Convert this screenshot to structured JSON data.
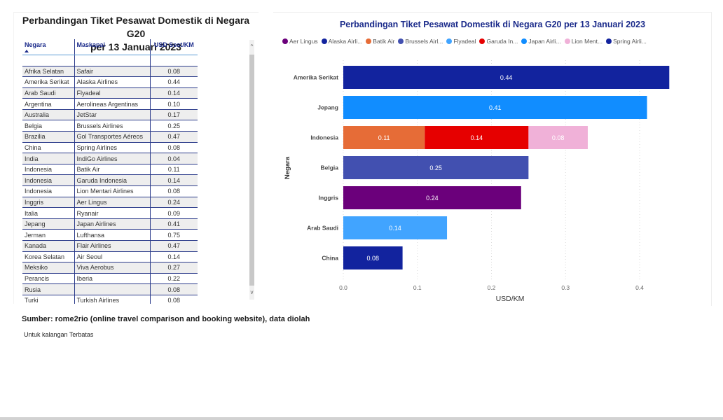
{
  "table_panel": {
    "title_line1": "Perbandingan Tiket Pesawat Domestik di Negara G20",
    "title_line2": "per 13 Januari 2023",
    "columns": [
      "Negara",
      "Maskapai",
      "USD Seat/KM"
    ],
    "sort_column": "Negara",
    "sort_direction": "ascending",
    "rows": [
      {
        "negara": "Afrika Selatan",
        "maskapai": "Safair",
        "usd": "0.08"
      },
      {
        "negara": "Amerika Serikat",
        "maskapai": "Alaska Airlines",
        "usd": "0.44"
      },
      {
        "negara": "Arab Saudi",
        "maskapai": "Flyadeal",
        "usd": "0.14"
      },
      {
        "negara": "Argentina",
        "maskapai": "Aerolineas Argentinas",
        "usd": "0.10"
      },
      {
        "negara": "Australia",
        "maskapai": "JetStar",
        "usd": "0.17"
      },
      {
        "negara": "Belgia",
        "maskapai": "Brussels Airlines",
        "usd": "0.25"
      },
      {
        "negara": "Brazilia",
        "maskapai": "Gol Transportes Aéreos",
        "usd": "0.47"
      },
      {
        "negara": "China",
        "maskapai": "Spring Airlines",
        "usd": "0.08"
      },
      {
        "negara": "India",
        "maskapai": "IndiGo Airlines",
        "usd": "0.04"
      },
      {
        "negara": "Indonesia",
        "maskapai": "Batik Air",
        "usd": "0.11"
      },
      {
        "negara": "Indonesia",
        "maskapai": "Garuda Indonesia",
        "usd": "0.14"
      },
      {
        "negara": "Indonesia",
        "maskapai": "Lion Mentari Airlines",
        "usd": "0.08"
      },
      {
        "negara": "Inggris",
        "maskapai": "Aer Lingus",
        "usd": "0.24"
      },
      {
        "negara": "Italia",
        "maskapai": "Ryanair",
        "usd": "0.09"
      },
      {
        "negara": "Jepang",
        "maskapai": "Japan Airlines",
        "usd": "0.41"
      },
      {
        "negara": "Jerman",
        "maskapai": "Lufthansa",
        "usd": "0.75"
      },
      {
        "negara": "Kanada",
        "maskapai": "Flair Airlines",
        "usd": "0.47"
      },
      {
        "negara": "Korea Selatan",
        "maskapai": "Air Seoul",
        "usd": "0.14"
      },
      {
        "negara": "Meksiko",
        "maskapai": "Viva Aerobus",
        "usd": "0.27"
      },
      {
        "negara": "Perancis",
        "maskapai": "Iberia",
        "usd": "0.22"
      },
      {
        "negara": "Rusia",
        "maskapai": "",
        "usd": "0.08"
      },
      {
        "negara": "Turki",
        "maskapai": "Turkish Airlines",
        "usd": "0.08"
      }
    ],
    "scroll_up_glyph": "^",
    "scroll_down_glyph": "v"
  },
  "footer": {
    "source": "Sumber: rome2rio (online travel comparison and booking website), data diolah",
    "note": "Untuk kalangan Terbatas"
  },
  "chart_data": {
    "type": "bar",
    "orientation": "horizontal",
    "stacked": true,
    "title": "Perbandingan Tiket Pesawat Domestik di Negara G20 per 13 Januari 2023",
    "xlabel": "USD/KM",
    "ylabel": "Negara",
    "xlim": [
      0,
      0.44
    ],
    "xticks": [
      "0.0",
      "0.1",
      "0.2",
      "0.3",
      "0.4"
    ],
    "xtick_values": [
      0,
      0.1,
      0.2,
      0.3,
      0.4
    ],
    "grid": "vertical dotted",
    "legend_position": "top-left",
    "legend": [
      {
        "label": "Aer Lingus",
        "color": "#6b007b"
      },
      {
        "label": "Alaska Airli...",
        "color": "#12239e"
      },
      {
        "label": "Batik Air",
        "color": "#e66c37"
      },
      {
        "label": "Brussels Airl...",
        "color": "#4250b0"
      },
      {
        "label": "Flyadeal",
        "color": "#41a4ff"
      },
      {
        "label": "Garuda In...",
        "color": "#e60000"
      },
      {
        "label": "Japan Airli...",
        "color": "#118dff"
      },
      {
        "label": "Lion Ment...",
        "color": "#f0b1d8"
      },
      {
        "label": "Spring Airli...",
        "color": "#12239e"
      }
    ],
    "categories": [
      "Amerika Serikat",
      "Jepang",
      "Indonesia",
      "Belgia",
      "Inggris",
      "Arab Saudi",
      "China"
    ],
    "bars": [
      {
        "category": "Amerika Serikat",
        "segments": [
          {
            "series": "Alaska Airlines",
            "value": 0.44,
            "label": "0.44",
            "color": "#12239e"
          }
        ]
      },
      {
        "category": "Jepang",
        "segments": [
          {
            "series": "Japan Airlines",
            "value": 0.41,
            "label": "0.41",
            "color": "#118dff"
          }
        ]
      },
      {
        "category": "Indonesia",
        "segments": [
          {
            "series": "Batik Air",
            "value": 0.11,
            "label": "0.11",
            "color": "#e66c37"
          },
          {
            "series": "Garuda Indonesia",
            "value": 0.14,
            "label": "0.14",
            "color": "#e60000"
          },
          {
            "series": "Lion Mentari Airlines",
            "value": 0.08,
            "label": "0.08",
            "color": "#f0b1d8"
          }
        ]
      },
      {
        "category": "Belgia",
        "segments": [
          {
            "series": "Brussels Airlines",
            "value": 0.25,
            "label": "0.25",
            "color": "#4250b0"
          }
        ]
      },
      {
        "category": "Inggris",
        "segments": [
          {
            "series": "Aer Lingus",
            "value": 0.24,
            "label": "0.24",
            "color": "#6b007b"
          }
        ]
      },
      {
        "category": "Arab Saudi",
        "segments": [
          {
            "series": "Flyadeal",
            "value": 0.14,
            "label": "0.14",
            "color": "#41a4ff"
          }
        ]
      },
      {
        "category": "China",
        "segments": [
          {
            "series": "Spring Airlines",
            "value": 0.08,
            "label": "0.08",
            "color": "#12239e"
          }
        ]
      }
    ]
  }
}
